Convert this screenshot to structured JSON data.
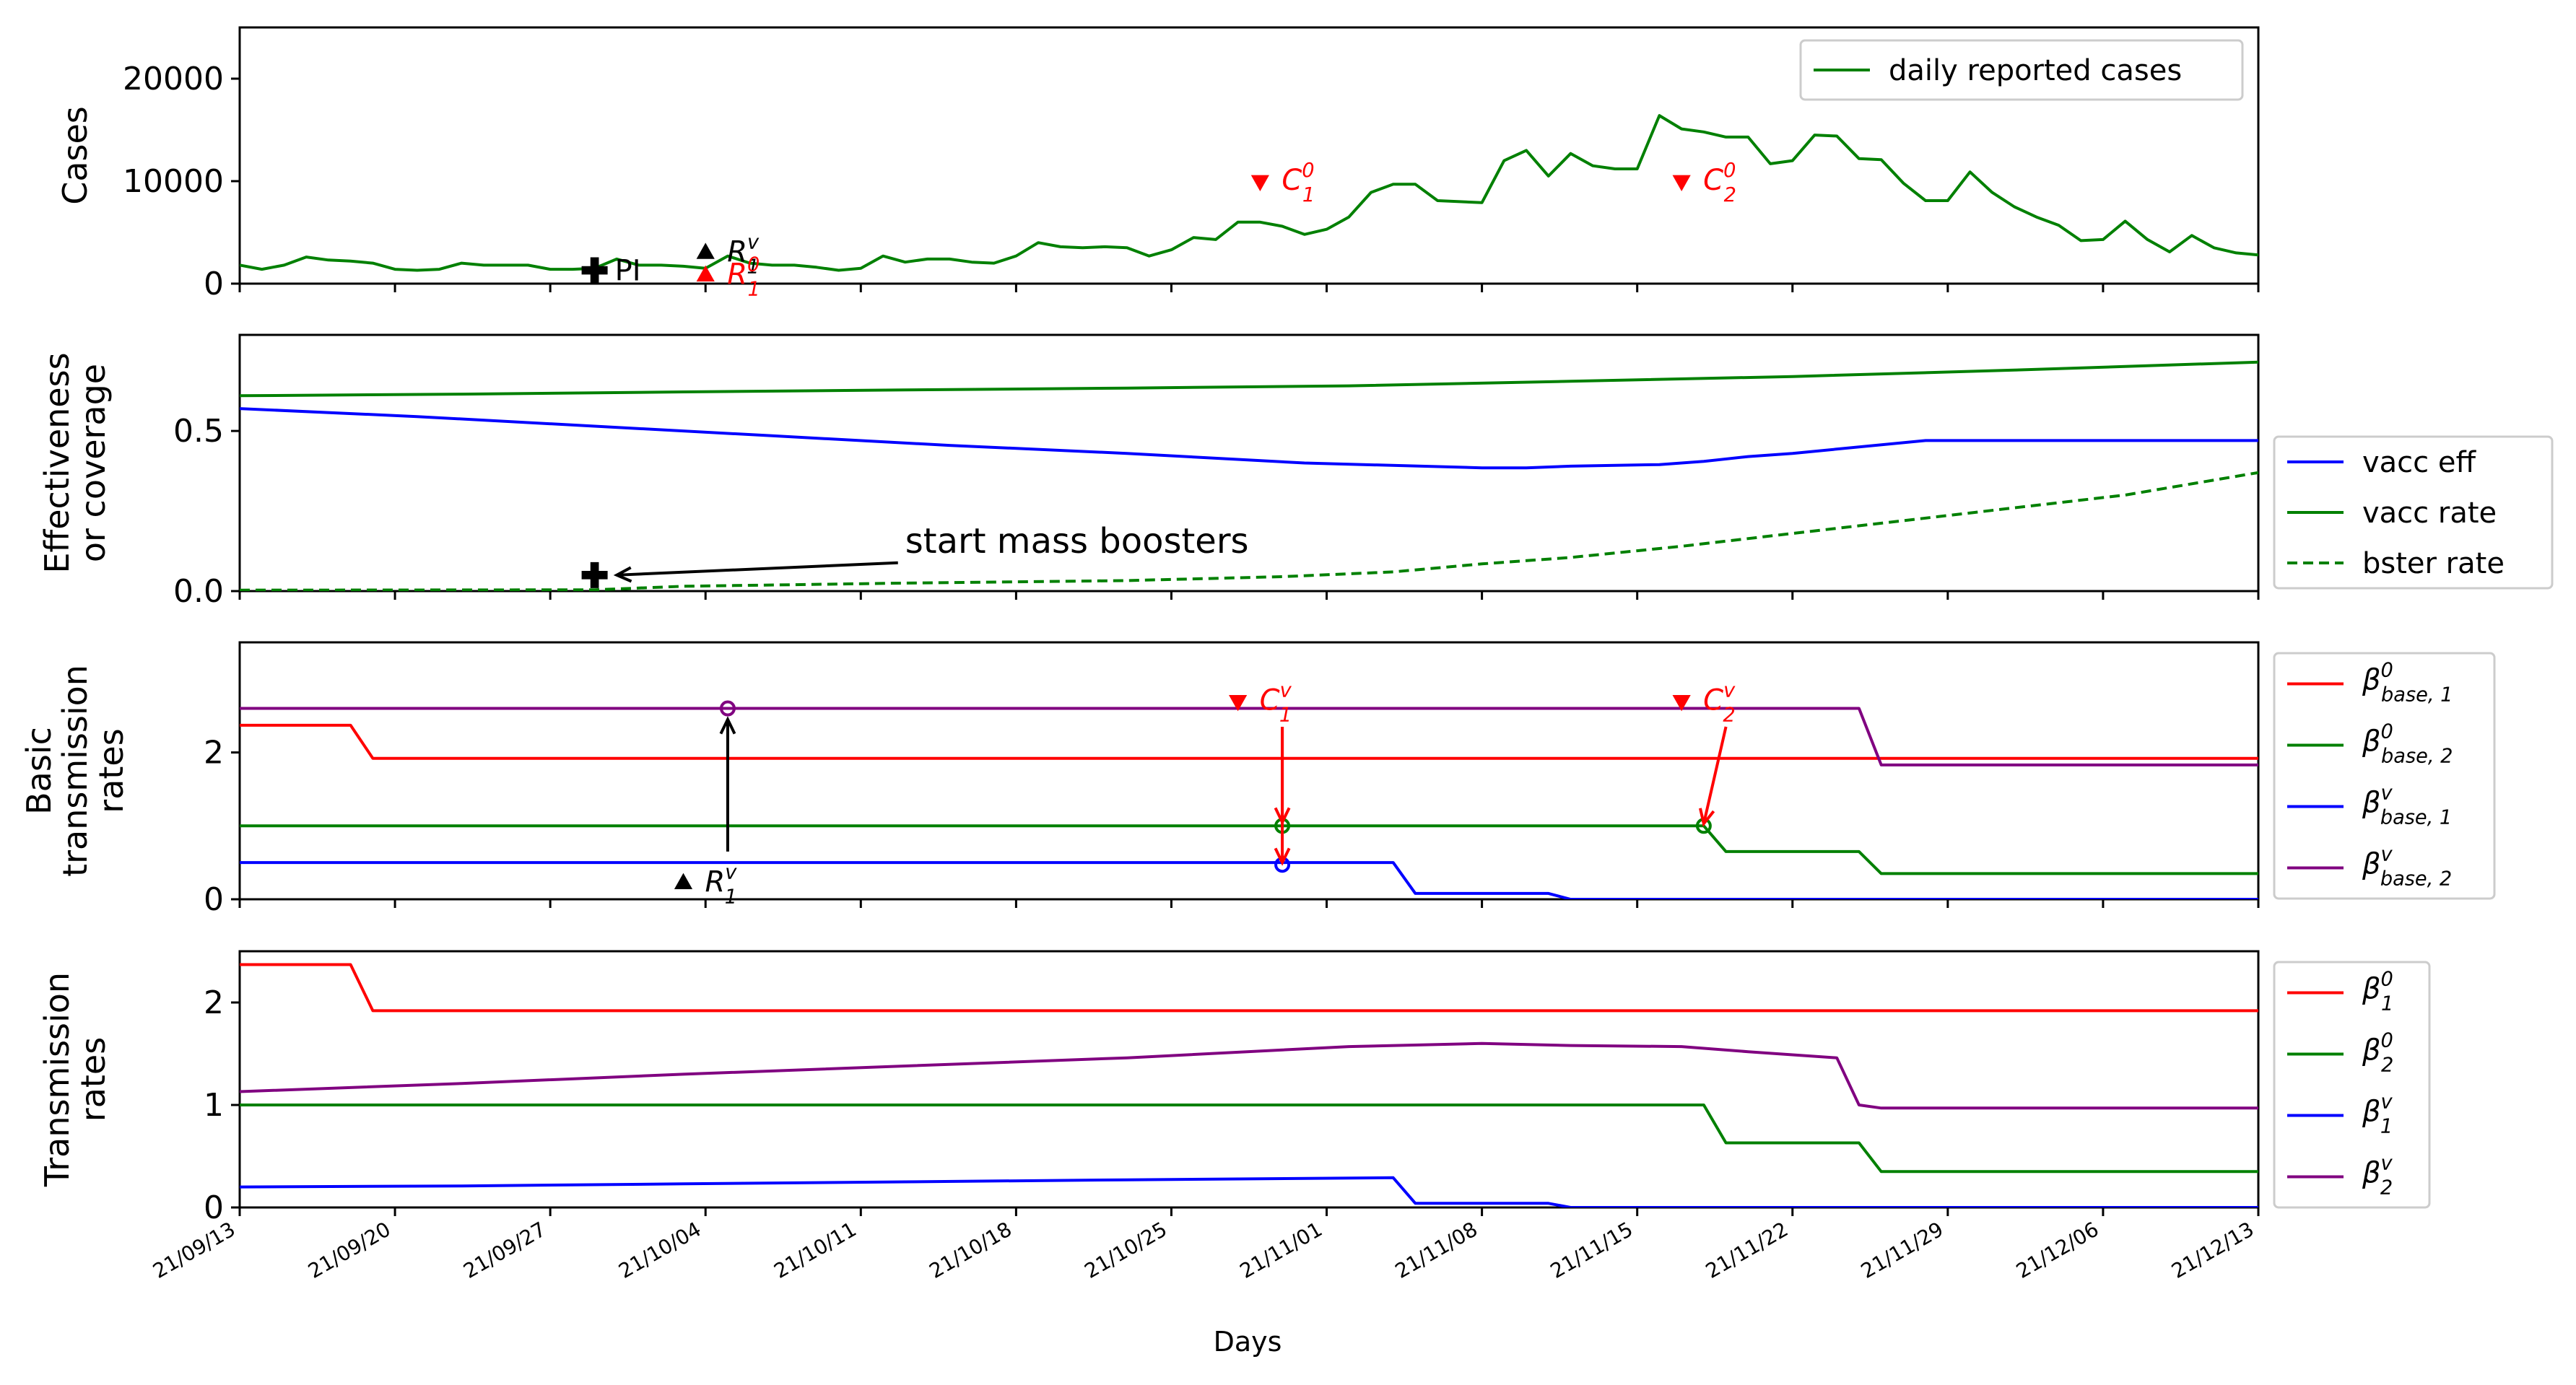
{
  "figure": {
    "xlabel": "Days",
    "xticks": [
      "21/09/13",
      "21/09/20",
      "21/09/27",
      "21/10/04",
      "21/10/11",
      "21/10/18",
      "21/10/25",
      "21/11/01",
      "21/11/08",
      "21/11/15",
      "21/11/22",
      "21/11/29",
      "21/12/06",
      "21/12/13"
    ],
    "colors": {
      "green": "#008000",
      "blue": "#0000ff",
      "red": "#ff0000",
      "purple": "#800080",
      "black": "#000000"
    }
  },
  "chart_data": [
    {
      "type": "line",
      "ylabel": "Cases",
      "ylim": [
        0,
        25000
      ],
      "yticks": [
        "0",
        "10000",
        "20000"
      ],
      "legend_position": "top-right",
      "series": [
        {
          "name": "daily reported cases",
          "color": "green",
          "style": "solid",
          "x": [
            0,
            1,
            2,
            3,
            4,
            5,
            6,
            7,
            8,
            9,
            10,
            11,
            12,
            13,
            14,
            15,
            16,
            17,
            18,
            19,
            20,
            21,
            22,
            23,
            24,
            25,
            26,
            27,
            28,
            29,
            30,
            31,
            32,
            33,
            34,
            35,
            36,
            37,
            38,
            39,
            40,
            41,
            42,
            43,
            44,
            45,
            46,
            47,
            48,
            49,
            50,
            51,
            52,
            53,
            54,
            55,
            56,
            57,
            58,
            59,
            60,
            61,
            62,
            63,
            64,
            65,
            66,
            67,
            68,
            69,
            70,
            71,
            72,
            73,
            74,
            75,
            76,
            77,
            78,
            79,
            80,
            81,
            82,
            83,
            84,
            85,
            86,
            87,
            88,
            89,
            90,
            91
          ],
          "values": [
            1800,
            1400,
            1800,
            2600,
            2300,
            2200,
            2000,
            1400,
            1300,
            1400,
            2000,
            1800,
            1800,
            1800,
            1400,
            1400,
            1500,
            2400,
            1800,
            1800,
            1700,
            1500,
            2700,
            2000,
            1800,
            1800,
            1600,
            1300,
            1500,
            2700,
            2100,
            2400,
            2400,
            2100,
            2000,
            2700,
            4000,
            3600,
            3500,
            3600,
            3500,
            2700,
            3300,
            4500,
            4300,
            6000,
            6000,
            5600,
            4800,
            5300,
            6500,
            8900,
            9700,
            9700,
            8100,
            8000,
            7900,
            12000,
            13000,
            10500,
            12700,
            11500,
            11200,
            11200,
            16400,
            15100,
            14800,
            14300,
            14300,
            11700,
            12000,
            14500,
            14400,
            12200,
            12100,
            9800,
            8100,
            8100,
            10900,
            8900,
            7500,
            6500,
            5700,
            4200,
            4300,
            6100,
            4300,
            3100,
            4700,
            3500,
            3000,
            2800
          ]
        }
      ],
      "markers": [
        {
          "label": "PI",
          "shape": "plus",
          "color": "black",
          "x": 16,
          "y": 1300
        },
        {
          "label": "R",
          "sup": "v",
          "sub": "1",
          "shape": "triangle-up",
          "color": "black",
          "x": 21,
          "y": 3000
        },
        {
          "label": "R",
          "sup": "0",
          "sub": "1",
          "shape": "triangle-up",
          "color": "red",
          "x": 21,
          "y": 800
        },
        {
          "label": "C",
          "sup": "0",
          "sub": "1",
          "shape": "triangle-down",
          "color": "red",
          "x": 46,
          "y": 10000
        },
        {
          "label": "C",
          "sup": "0",
          "sub": "2",
          "shape": "triangle-down",
          "color": "red",
          "x": 65,
          "y": 10000
        }
      ]
    },
    {
      "type": "line",
      "ylabel": [
        "Effectiveness",
        "or coverage"
      ],
      "ylim": [
        0,
        0.8
      ],
      "yticks": [
        "0.0",
        "0.5"
      ],
      "legend_position": "right",
      "series": [
        {
          "name": "vacc eff",
          "color": "blue",
          "style": "solid",
          "x": [
            0,
            8,
            16,
            24,
            32,
            40,
            48,
            56,
            58,
            60,
            64,
            66,
            68,
            70,
            76,
            91
          ],
          "values": [
            0.57,
            0.545,
            0.515,
            0.485,
            0.455,
            0.43,
            0.4,
            0.385,
            0.385,
            0.39,
            0.395,
            0.405,
            0.42,
            0.43,
            0.47,
            0.47
          ]
        },
        {
          "name": "vacc rate",
          "color": "green",
          "style": "solid",
          "x": [
            0,
            10,
            20,
            30,
            40,
            50,
            60,
            70,
            80,
            91
          ],
          "values": [
            0.61,
            0.615,
            0.622,
            0.628,
            0.634,
            0.641,
            0.655,
            0.67,
            0.69,
            0.715
          ]
        },
        {
          "name": "bster rate",
          "color": "green",
          "style": "dashed",
          "x": [
            0,
            16,
            20,
            30,
            40,
            47,
            52,
            56,
            60,
            65,
            70,
            75,
            80,
            85,
            91
          ],
          "values": [
            0.003,
            0.004,
            0.015,
            0.025,
            0.033,
            0.045,
            0.06,
            0.085,
            0.105,
            0.14,
            0.18,
            0.22,
            0.26,
            0.3,
            0.37
          ]
        }
      ],
      "markers": [
        {
          "label": "",
          "shape": "plus",
          "color": "black",
          "x": 16,
          "y": 0.05
        }
      ],
      "annotations": [
        {
          "text": "start mass boosters",
          "text_x": 30,
          "text_y": 0.12,
          "arrow_to_x": 17,
          "arrow_to_y": 0.05
        }
      ]
    },
    {
      "type": "line",
      "ylabel": [
        "Basic",
        "transmission",
        "rates"
      ],
      "ylim": [
        0,
        3.5
      ],
      "yticks": [
        "0",
        "2"
      ],
      "legend_position": "right",
      "series": [
        {
          "name": "β",
          "sup": "0",
          "sub": "base, 1",
          "color": "red",
          "style": "solid",
          "x": [
            0,
            5,
            6,
            91
          ],
          "values": [
            2.37,
            2.37,
            1.92,
            1.92
          ]
        },
        {
          "name": "β",
          "sup": "0",
          "sub": "base, 2",
          "color": "green",
          "style": "solid",
          "x": [
            0,
            66,
            67,
            73,
            74,
            91
          ],
          "values": [
            1.0,
            1.0,
            0.65,
            0.65,
            0.35,
            0.35
          ]
        },
        {
          "name": "β",
          "sup": "v",
          "sub": "base, 1",
          "color": "blue",
          "style": "solid",
          "x": [
            0,
            52,
            53,
            59,
            60,
            91
          ],
          "values": [
            0.5,
            0.5,
            0.08,
            0.08,
            0.0,
            0.0
          ]
        },
        {
          "name": "β",
          "sup": "v",
          "sub": "base, 2",
          "color": "purple",
          "style": "solid",
          "x": [
            0,
            73,
            74,
            91
          ],
          "values": [
            2.6,
            2.6,
            1.83,
            1.83
          ]
        }
      ],
      "markers": [
        {
          "label": "R",
          "sup": "v",
          "sub": "1",
          "shape": "triangle-up",
          "color": "black",
          "x": 20,
          "y": 0.22
        },
        {
          "label": "C",
          "sup": "v",
          "sub": "1",
          "shape": "triangle-down",
          "color": "red",
          "x": 45,
          "y": 2.7
        },
        {
          "label": "C",
          "sup": "v",
          "sub": "2",
          "shape": "triangle-down",
          "color": "red",
          "x": 65,
          "y": 2.7
        }
      ],
      "circles": [
        {
          "x": 22,
          "y": 2.6,
          "color": "purple"
        },
        {
          "x": 47,
          "y": 1.0,
          "color": "green"
        },
        {
          "x": 47,
          "y": 0.47,
          "color": "blue"
        },
        {
          "x": 66,
          "y": 1.0,
          "color": "green"
        }
      ],
      "arrows": [
        {
          "from_x": 22,
          "from_y": 0.65,
          "to_x": 22,
          "to_y": 2.45,
          "color": "black"
        },
        {
          "from_x": 47,
          "from_y": 2.35,
          "to_x": 47,
          "to_y": 1.05,
          "color": "red"
        },
        {
          "from_x": 47,
          "from_y": 2.35,
          "to_x": 47,
          "to_y": 0.5,
          "color": "red"
        },
        {
          "from_x": 67,
          "from_y": 2.35,
          "to_x": 66,
          "to_y": 1.03,
          "color": "red"
        }
      ]
    },
    {
      "type": "line",
      "ylabel": [
        "Transmission",
        "rates"
      ],
      "ylim": [
        0,
        2.5
      ],
      "yticks": [
        "0",
        "1",
        "2"
      ],
      "legend_position": "right",
      "series": [
        {
          "name": "β",
          "sup": "0",
          "sub": "1",
          "color": "red",
          "style": "solid",
          "x": [
            0,
            5,
            6,
            91
          ],
          "values": [
            2.37,
            2.37,
            1.92,
            1.92
          ]
        },
        {
          "name": "β",
          "sup": "0",
          "sub": "2",
          "color": "green",
          "style": "solid",
          "x": [
            0,
            66,
            67,
            73,
            74,
            91
          ],
          "values": [
            1.0,
            1.0,
            0.63,
            0.63,
            0.35,
            0.35
          ]
        },
        {
          "name": "β",
          "sup": "v",
          "sub": "1",
          "color": "blue",
          "style": "solid",
          "x": [
            0,
            10,
            20,
            30,
            40,
            52,
            53,
            59,
            60,
            91
          ],
          "values": [
            0.2,
            0.21,
            0.23,
            0.25,
            0.27,
            0.29,
            0.04,
            0.04,
            0.0,
            0.0
          ]
        },
        {
          "name": "β",
          "sup": "v",
          "sub": "2",
          "color": "purple",
          "style": "solid",
          "x": [
            0,
            10,
            20,
            30,
            40,
            50,
            56,
            60,
            65,
            68,
            72,
            73,
            74,
            91
          ],
          "values": [
            1.13,
            1.21,
            1.3,
            1.38,
            1.46,
            1.57,
            1.6,
            1.58,
            1.57,
            1.52,
            1.46,
            1.0,
            0.97,
            0.97
          ]
        }
      ]
    }
  ]
}
